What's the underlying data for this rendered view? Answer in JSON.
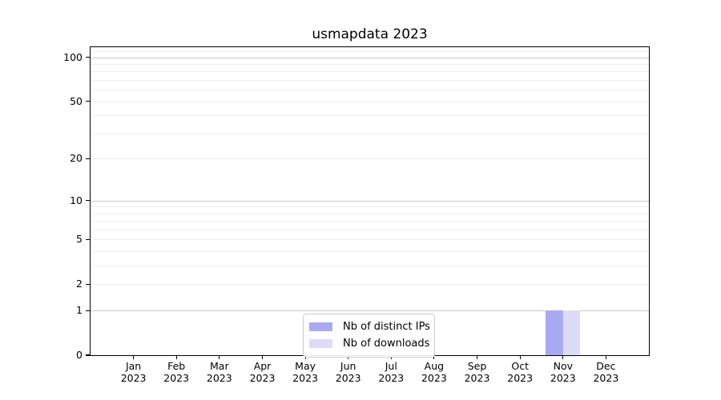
{
  "figure": {
    "title": "usmapdata 2023"
  },
  "chart_data": {
    "type": "bar",
    "title": "usmapdata 2023",
    "categories": [
      "Jan",
      "Feb",
      "Mar",
      "Apr",
      "May",
      "Jun",
      "Jul",
      "Aug",
      "Sep",
      "Oct",
      "Nov",
      "Dec"
    ],
    "category_year": "2023",
    "series": [
      {
        "name": "Nb of distinct IPs",
        "color": "#a9a9f2",
        "values": [
          0,
          0,
          0,
          0,
          0,
          0,
          0,
          0,
          0,
          0,
          1,
          0
        ]
      },
      {
        "name": "Nb of downloads",
        "color": "#dcdcf7",
        "values": [
          0,
          0,
          0,
          0,
          0,
          0,
          0,
          0,
          0,
          0,
          1,
          0
        ]
      }
    ],
    "xlabel": "",
    "ylabel": "",
    "yscale": "log1p",
    "ylim": [
      0,
      117
    ],
    "y_tick_labels": [
      0,
      1,
      2,
      5,
      10,
      20,
      50,
      100
    ],
    "y_gridlines_major": [
      1,
      10,
      100
    ],
    "y_gridlines_minor": [
      2,
      3,
      4,
      5,
      6,
      7,
      8,
      9,
      20,
      30,
      40,
      50,
      60,
      70,
      80,
      90,
      110
    ],
    "grid": true,
    "legend_position": "lower center",
    "colors": {
      "grid_major": "#c9c9c9",
      "grid_minor": "#ededed",
      "axis": "#000000",
      "background": "#ffffff",
      "text": "#000000"
    }
  }
}
